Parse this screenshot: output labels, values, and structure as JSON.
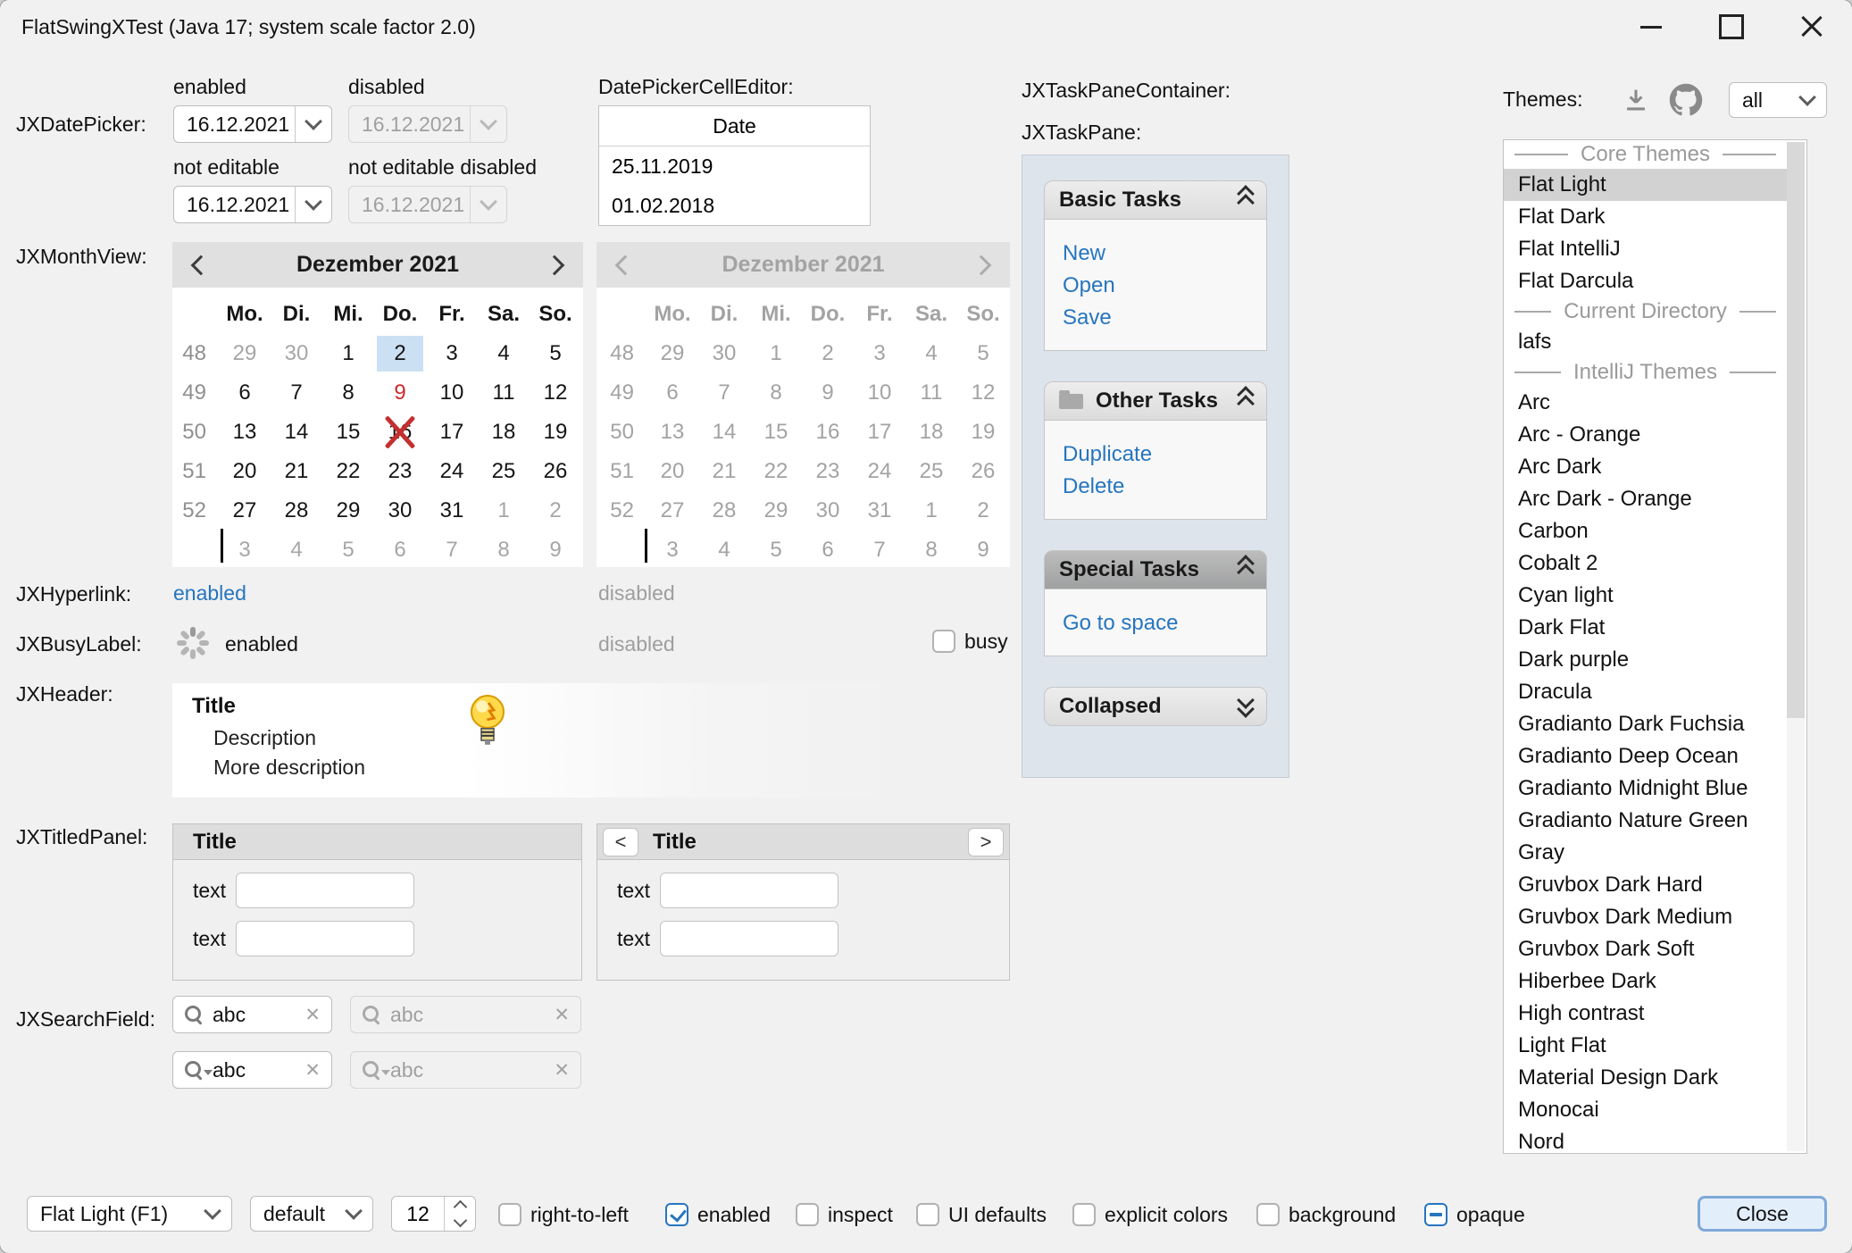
{
  "window": {
    "title": "FlatSwingXTest (Java 17;  system scale factor 2.0)",
    "controls": [
      "minimize-icon",
      "maximize-icon",
      "close-icon"
    ]
  },
  "colors": {
    "accent": "#2675bf",
    "selection_bg": "#cbe0f2",
    "flagged_red": "#cc2a2a",
    "taskpane_container_bg": "#dde4ec"
  },
  "datePicker": {
    "label": "JXDatePicker:",
    "fields": [
      {
        "caption": "enabled",
        "value": "16.12.2021",
        "disabled": false
      },
      {
        "caption": "disabled",
        "value": "16.12.2021",
        "disabled": true
      },
      {
        "caption": "not editable",
        "value": "16.12.2021",
        "disabled": false
      },
      {
        "caption": "not editable disabled",
        "value": "16.12.2021",
        "disabled": true
      }
    ]
  },
  "cellEditor": {
    "label": "DatePickerCellEditor:",
    "header": "Date",
    "rows": [
      "25.11.2019",
      "01.02.2018"
    ]
  },
  "monthView": {
    "label": "JXMonthView:",
    "title": "Dezember 2021",
    "dayHeaders": [
      "Mo.",
      "Di.",
      "Mi.",
      "Do.",
      "Fr.",
      "Sa.",
      "So."
    ],
    "weekNumbers": [
      "48",
      "49",
      "50",
      "51",
      "52",
      ""
    ],
    "weeks": [
      [
        {
          "d": 29,
          "o": 1
        },
        {
          "d": 30,
          "o": 1
        },
        {
          "d": 1
        },
        {
          "d": 2,
          "sel": 1
        },
        {
          "d": 3
        },
        {
          "d": 4
        },
        {
          "d": 5
        }
      ],
      [
        {
          "d": 6
        },
        {
          "d": 7
        },
        {
          "d": 8
        },
        {
          "d": 9,
          "red": 1
        },
        {
          "d": 10
        },
        {
          "d": 11
        },
        {
          "d": 12
        }
      ],
      [
        {
          "d": 13
        },
        {
          "d": 14
        },
        {
          "d": 15
        },
        {
          "d": 16,
          "x": 1
        },
        {
          "d": 17
        },
        {
          "d": 18
        },
        {
          "d": 19
        }
      ],
      [
        {
          "d": 20
        },
        {
          "d": 21
        },
        {
          "d": 22
        },
        {
          "d": 23
        },
        {
          "d": 24
        },
        {
          "d": 25
        },
        {
          "d": 26
        }
      ],
      [
        {
          "d": 27
        },
        {
          "d": 28
        },
        {
          "d": 29
        },
        {
          "d": 30
        },
        {
          "d": 31
        },
        {
          "d": 1,
          "o": 1
        },
        {
          "d": 2,
          "o": 1
        }
      ],
      [
        {
          "d": 3,
          "o": 1
        },
        {
          "d": 4,
          "o": 1
        },
        {
          "d": 5,
          "o": 1
        },
        {
          "d": 6,
          "o": 1
        },
        {
          "d": 7,
          "o": 1
        },
        {
          "d": 8,
          "o": 1
        },
        {
          "d": 9,
          "o": 1
        }
      ]
    ]
  },
  "hyperlink": {
    "label": "JXHyperlink:",
    "enabled": "enabled",
    "disabled": "disabled"
  },
  "busyLabel": {
    "label": "JXBusyLabel:",
    "enabled": "enabled",
    "disabled": "disabled",
    "busyCheckbox": "busy"
  },
  "header": {
    "label": "JXHeader:",
    "title": "Title",
    "description": "Description",
    "more": "More description"
  },
  "titledPanel": {
    "label": "JXTitledPanel:",
    "title": "Title",
    "textLabel": "text",
    "leftArrow": "<",
    "rightArrow": ">"
  },
  "searchField": {
    "label": "JXSearchField:",
    "value": "abc"
  },
  "taskPane": {
    "containerLabel": "JXTaskPaneContainer:",
    "paneLabel": "JXTaskPane:",
    "panes": [
      {
        "title": "Basic Tasks",
        "style": "normal",
        "chevron": "up",
        "links": [
          "New",
          "Open",
          "Save"
        ]
      },
      {
        "title": "Other Tasks",
        "style": "normal",
        "icon": "folder",
        "chevron": "up",
        "links": [
          "Duplicate",
          "Delete"
        ]
      },
      {
        "title": "Special Tasks",
        "style": "special",
        "chevron": "up",
        "links": [
          "Go to space"
        ]
      },
      {
        "title": "Collapsed",
        "style": "collapsed",
        "chevron": "down",
        "links": []
      }
    ]
  },
  "themes": {
    "label": "Themes:",
    "filter": "all",
    "toolbarIcons": [
      "download-icon",
      "github-icon"
    ],
    "items": [
      {
        "type": "separator",
        "label": "Core Themes"
      },
      {
        "type": "item",
        "label": "Flat Light",
        "selected": true
      },
      {
        "type": "item",
        "label": "Flat Dark"
      },
      {
        "type": "item",
        "label": "Flat IntelliJ"
      },
      {
        "type": "item",
        "label": "Flat Darcula"
      },
      {
        "type": "separator",
        "label": "Current Directory"
      },
      {
        "type": "item",
        "label": "lafs"
      },
      {
        "type": "separator",
        "label": "IntelliJ Themes"
      },
      {
        "type": "item",
        "label": "Arc"
      },
      {
        "type": "item",
        "label": "Arc - Orange"
      },
      {
        "type": "item",
        "label": "Arc Dark"
      },
      {
        "type": "item",
        "label": "Arc Dark - Orange"
      },
      {
        "type": "item",
        "label": "Carbon"
      },
      {
        "type": "item",
        "label": "Cobalt 2"
      },
      {
        "type": "item",
        "label": "Cyan light"
      },
      {
        "type": "item",
        "label": "Dark Flat"
      },
      {
        "type": "item",
        "label": "Dark purple"
      },
      {
        "type": "item",
        "label": "Dracula"
      },
      {
        "type": "item",
        "label": "Gradianto Dark Fuchsia"
      },
      {
        "type": "item",
        "label": "Gradianto Deep Ocean"
      },
      {
        "type": "item",
        "label": "Gradianto Midnight Blue"
      },
      {
        "type": "item",
        "label": "Gradianto Nature Green"
      },
      {
        "type": "item",
        "label": "Gray"
      },
      {
        "type": "item",
        "label": "Gruvbox Dark Hard"
      },
      {
        "type": "item",
        "label": "Gruvbox Dark Medium"
      },
      {
        "type": "item",
        "label": "Gruvbox Dark Soft"
      },
      {
        "type": "item",
        "label": "Hiberbee Dark"
      },
      {
        "type": "item",
        "label": "High contrast"
      },
      {
        "type": "item",
        "label": "Light Flat"
      },
      {
        "type": "item",
        "label": "Material Design Dark"
      },
      {
        "type": "item",
        "label": "Monocai"
      },
      {
        "type": "item",
        "label": "Nord"
      }
    ]
  },
  "bottom": {
    "lafCombo": "Flat Light (F1)",
    "fontCombo": "default",
    "fontSize": "12",
    "checkboxes": [
      {
        "label": "right-to-left",
        "state": "unchecked"
      },
      {
        "label": "enabled",
        "state": "checked"
      },
      {
        "label": "inspect",
        "state": "unchecked"
      },
      {
        "label": "UI defaults",
        "state": "unchecked"
      },
      {
        "label": "explicit colors",
        "state": "unchecked"
      },
      {
        "label": "background",
        "state": "unchecked"
      },
      {
        "label": "opaque",
        "state": "indeterminate"
      }
    ],
    "closeButton": "Close"
  }
}
